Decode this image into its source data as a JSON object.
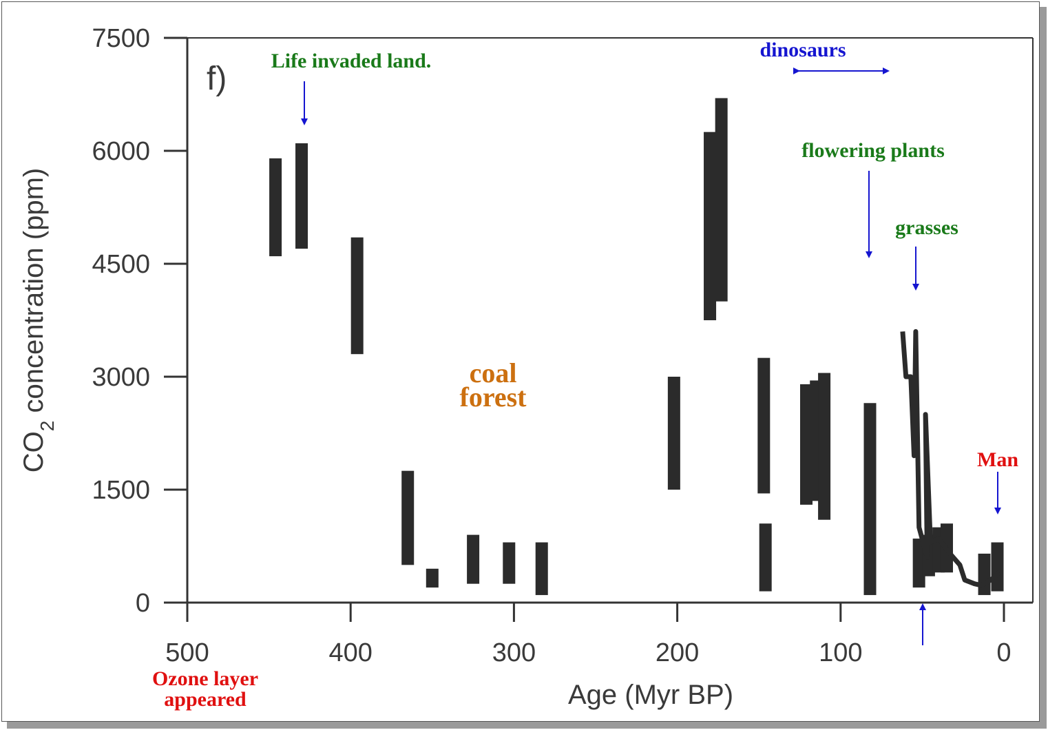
{
  "chart_data": {
    "type": "bar",
    "panel_label": "f)",
    "xlabel": "Age (Myr BP)",
    "ylabel_main": "CO",
    "ylabel_sub": "2",
    "ylabel_rest": " concentration (ppm)",
    "xlim": [
      500,
      0
    ],
    "ylim": [
      0,
      7500
    ],
    "xticks": [
      500,
      400,
      300,
      200,
      100,
      0
    ],
    "yticks": [
      0,
      1500,
      3000,
      4500,
      6000,
      7500
    ],
    "grid": false,
    "series": [
      {
        "ranges": [
          {
            "x": 446,
            "low": 4600,
            "high": 5900
          },
          {
            "x": 430,
            "low": 4700,
            "high": 6100
          },
          {
            "x": 396,
            "low": 3300,
            "high": 4850
          },
          {
            "x": 365,
            "low": 500,
            "high": 1750
          },
          {
            "x": 350,
            "low": 200,
            "high": 450
          },
          {
            "x": 325,
            "low": 250,
            "high": 900
          },
          {
            "x": 303,
            "low": 250,
            "high": 800
          },
          {
            "x": 283,
            "low": 100,
            "high": 800
          },
          {
            "x": 202,
            "low": 1500,
            "high": 3000
          },
          {
            "x": 180,
            "low": 3750,
            "high": 6250
          },
          {
            "x": 173,
            "low": 4000,
            "high": 6700
          },
          {
            "x": 147,
            "low": 1450,
            "high": 3250
          },
          {
            "x": 146,
            "low": 150,
            "high": 1050
          },
          {
            "x": 121,
            "low": 1300,
            "high": 2900
          },
          {
            "x": 115,
            "low": 1350,
            "high": 2950
          },
          {
            "x": 110,
            "low": 1100,
            "high": 3050
          },
          {
            "x": 82,
            "low": 100,
            "high": 2650
          },
          {
            "x": 52,
            "low": 200,
            "high": 850
          },
          {
            "x": 46,
            "low": 350,
            "high": 900
          },
          {
            "x": 40,
            "low": 400,
            "high": 1000
          },
          {
            "x": 35,
            "low": 400,
            "high": 1050
          },
          {
            "x": 12,
            "low": 100,
            "high": 650
          },
          {
            "x": 4,
            "low": 150,
            "high": 800
          }
        ],
        "trace": [
          {
            "x": 62,
            "y": 3600
          },
          {
            "x": 60,
            "y": 3000
          },
          {
            "x": 57,
            "y": 3000
          },
          {
            "x": 55,
            "y": 1950
          },
          {
            "x": 54,
            "y": 3600
          },
          {
            "x": 52,
            "y": 1000
          },
          {
            "x": 47,
            "y": 600
          },
          {
            "x": 48,
            "y": 2500
          },
          {
            "x": 45,
            "y": 800
          },
          {
            "x": 40,
            "y": 850
          },
          {
            "x": 33,
            "y": 650
          },
          {
            "x": 27,
            "y": 500
          },
          {
            "x": 24,
            "y": 300
          },
          {
            "x": 18,
            "y": 250
          },
          {
            "x": 14,
            "y": 230
          },
          {
            "x": 8,
            "y": 300
          },
          {
            "x": 3,
            "y": 400
          }
        ]
      }
    ],
    "annotations": [
      {
        "text": "Life invaded land.",
        "color": "#1a7a1a"
      },
      {
        "text": "dinosaurs",
        "color": "#1515d0"
      },
      {
        "text": "flowering plants",
        "color": "#1a7a1a"
      },
      {
        "text": "grasses",
        "color": "#1a7a1a"
      },
      {
        "text": "coal",
        "color": "#cc7010"
      },
      {
        "text": "forest",
        "color": "#cc7010"
      },
      {
        "text": "Man",
        "color": "#e01010"
      },
      {
        "text": "Ozone layer",
        "color": "#e01010"
      },
      {
        "text": "appeared",
        "color": "#e01010"
      }
    ],
    "colors": {
      "data": "#2b2b2b",
      "axis": "#333333",
      "arrow": "#1515d0"
    }
  }
}
